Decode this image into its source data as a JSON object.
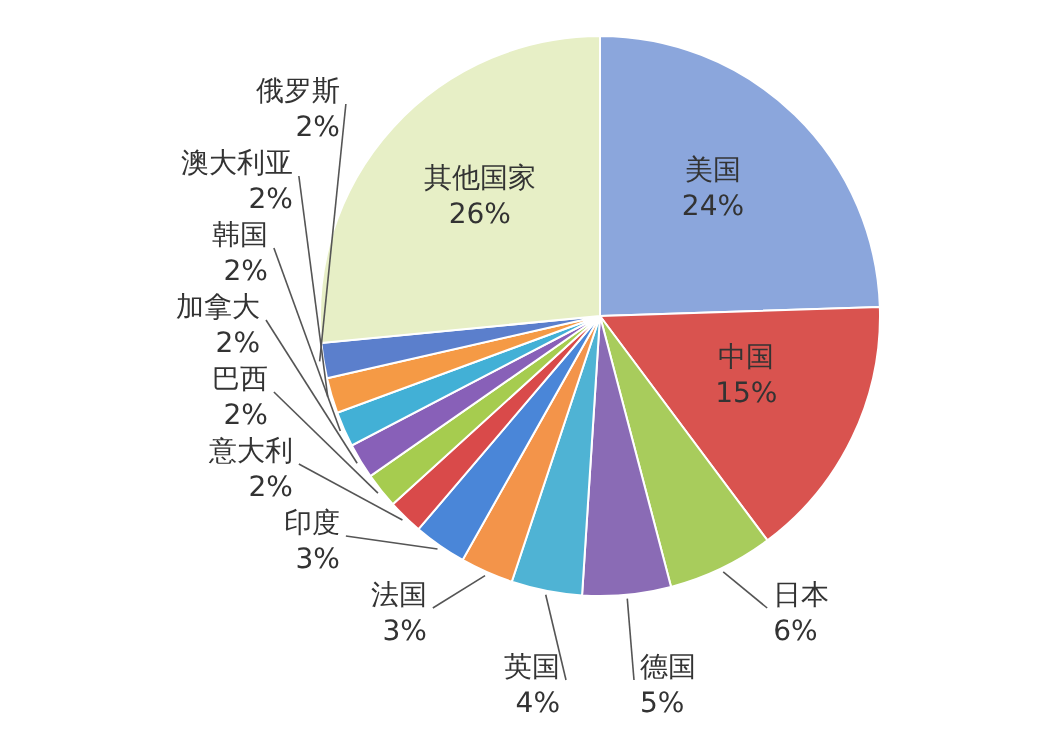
{
  "chart_data": {
    "type": "pie",
    "categories": [
      "美国",
      "中国",
      "日本",
      "德国",
      "英国",
      "法国",
      "印度",
      "意大利",
      "巴西",
      "加拿大",
      "韩国",
      "澳大利亚",
      "俄罗斯",
      "其他国家"
    ],
    "values": [
      24,
      15,
      6,
      5,
      4,
      3,
      3,
      2,
      2,
      2,
      2,
      2,
      2,
      26
    ],
    "value_labels": [
      "24%",
      "15%",
      "6%",
      "5%",
      "4%",
      "3%",
      "3%",
      "2%",
      "2%",
      "2%",
      "2%",
      "2%",
      "2%",
      "26%"
    ],
    "colors": [
      "#8ba6dc",
      "#d9534f",
      "#a8cc5c",
      "#8a6bb5",
      "#4fb3d4",
      "#f3944a",
      "#4a86d8",
      "#d94a4a",
      "#a6cc4f",
      "#8860b8",
      "#42b0d6",
      "#f59a45",
      "#5b7fcc",
      "#e7efc6"
    ]
  }
}
